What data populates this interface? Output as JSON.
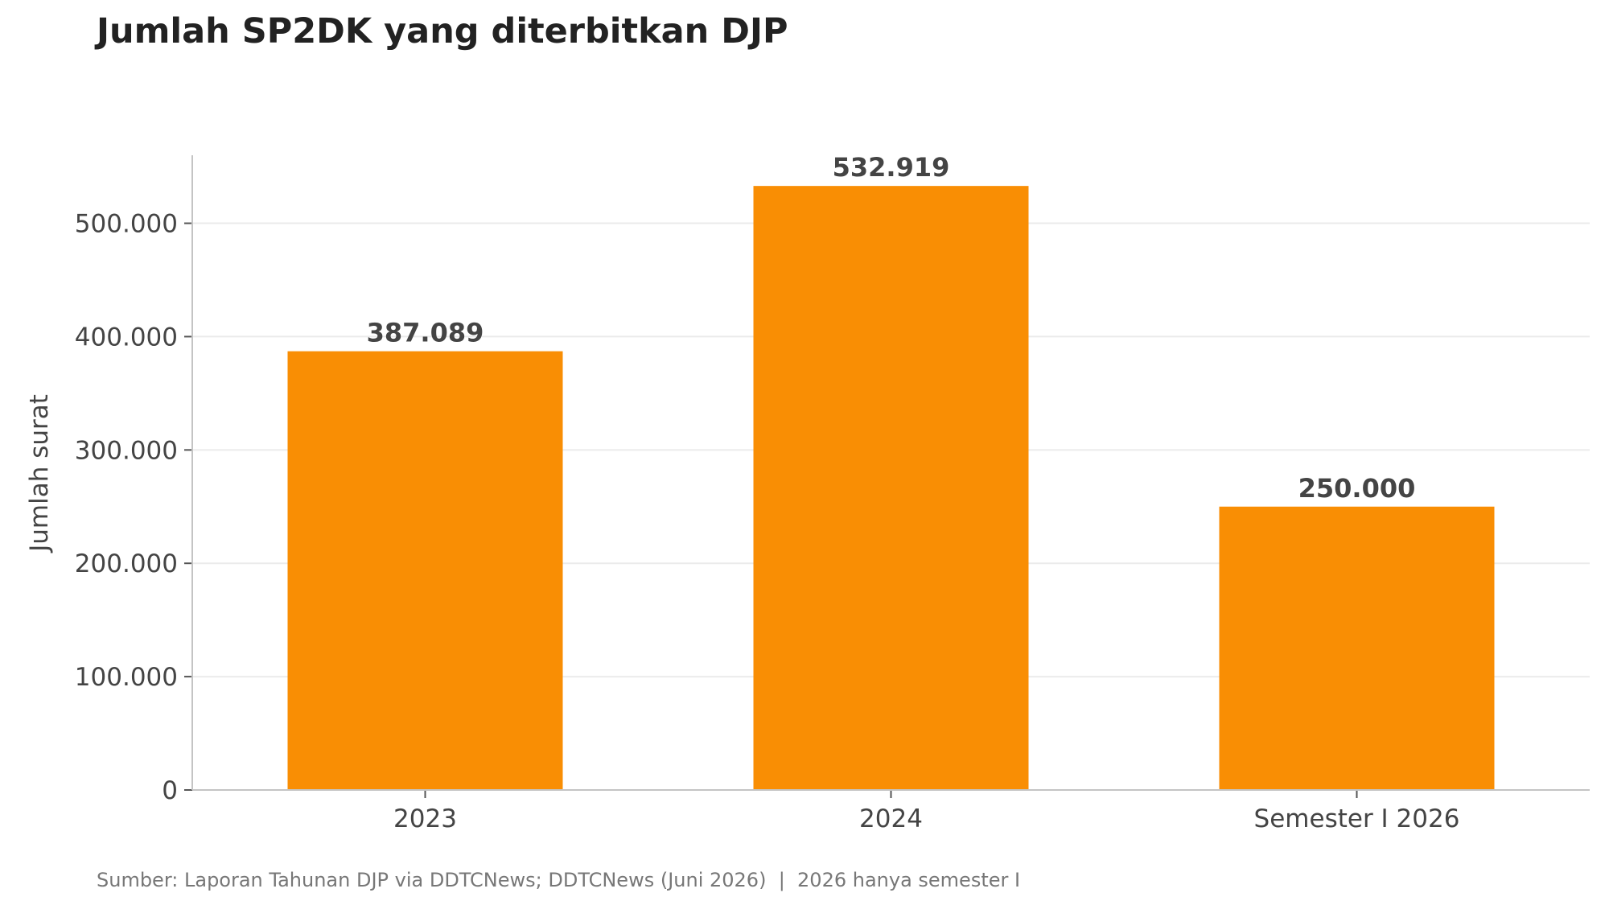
{
  "chart_data": {
    "type": "bar",
    "title": "Jumlah SP2DK yang diterbitkan DJP",
    "categories": [
      "2023",
      "2024",
      "Semester I 2026"
    ],
    "values": [
      387089,
      532919,
      250000
    ],
    "value_labels": [
      "387.089",
      "532.919",
      "250.000"
    ],
    "xlabel": "",
    "ylabel": "Jumlah surat",
    "ylim": [
      0,
      560000
    ],
    "yticks": [
      0,
      100000,
      200000,
      300000,
      400000,
      500000
    ],
    "ytick_labels": [
      "0",
      "100.000",
      "200.000",
      "300.000",
      "400.000",
      "500.000"
    ],
    "grid": "horizontal",
    "bar_color": "#F98E04",
    "source": "Sumber: Laporan Tahunan DJP via DDTCNews; DDTCNews (Juni 2026)  |  2026 hanya semester I"
  }
}
